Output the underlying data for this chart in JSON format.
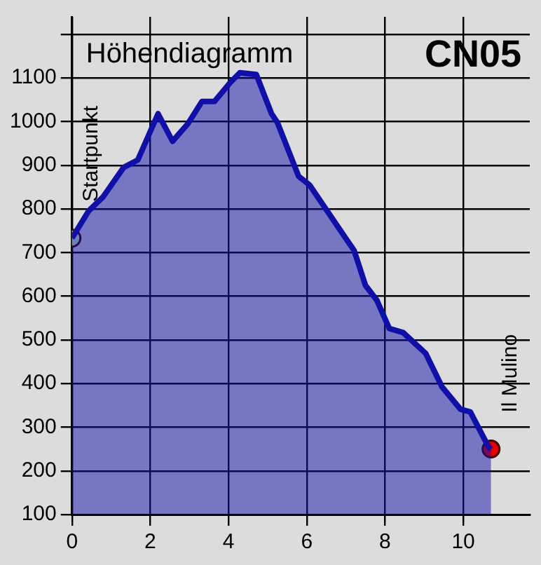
{
  "chart_data": {
    "type": "area",
    "title": "Höhendiagramm",
    "subtitle": "CN05",
    "xlim": [
      0,
      11.7
    ],
    "xticks": [
      0,
      2,
      4,
      6,
      8,
      10
    ],
    "ylim": [
      100,
      1240
    ],
    "yticks": [
      100,
      200,
      300,
      400,
      500,
      600,
      700,
      800,
      900,
      1000,
      1100,
      {
        "value": 1200,
        "label": null
      }
    ],
    "grid": true,
    "legend": false,
    "marker": "none",
    "line_style": "solid",
    "series": [
      {
        "type": "area",
        "color": "#1010a8",
        "x": [
          0,
          0.43,
          0.79,
          1.32,
          1.68,
          2.2,
          2.57,
          2.96,
          3.32,
          3.64,
          4.04,
          4.29,
          4.71,
          5.1,
          5.25,
          5.79,
          6.07,
          7.04,
          7.21,
          7.5,
          7.79,
          8.11,
          8.46,
          9.04,
          9.46,
          9.93,
          10.18,
          10.64,
          10.71
        ],
        "values": [
          733,
          796,
          827,
          895,
          912,
          1018,
          955,
          995,
          1046,
          1046,
          1089,
          1112,
          1108,
          1018,
          998,
          875,
          855,
          727,
          705,
          625,
          591,
          526,
          517,
          469,
          392,
          341,
          335,
          256,
          250
        ]
      },
      {
        "type": "scatter",
        "color": "#c8f5c0",
        "marker": "circle",
        "x": [
          0
        ],
        "values": [
          733
        ]
      },
      {
        "type": "scatter",
        "color": "#e80000",
        "marker": "circle",
        "x": [
          10.71
        ],
        "values": [
          250
        ]
      }
    ],
    "annotations": [
      {
        "text": "Startpunkt",
        "x": 0,
        "y": 733
      },
      {
        "text": "Il Mulino",
        "x": 10.71,
        "y": 250
      }
    ]
  }
}
